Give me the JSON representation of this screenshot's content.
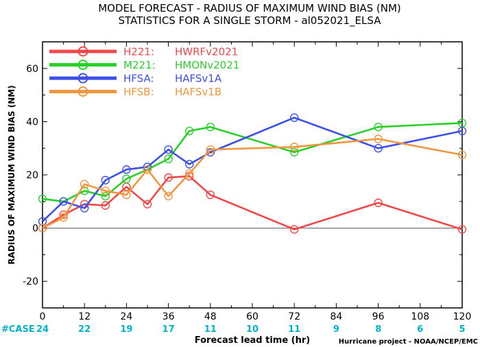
{
  "chart_data": {
    "type": "line",
    "title": "MODEL FORECAST - RADIUS OF MAXIMUM WIND BIAS (NM)",
    "subtitle": "STATISTICS FOR A SINGLE STORM - al052021_ELSA",
    "xlabel": "Forecast lead time (hr)",
    "ylabel": "RADIUS OF MAXIMUM WIND BIAS (NM)",
    "xlim": [
      0,
      120
    ],
    "ylim": [
      -30,
      70
    ],
    "x_ticks": [
      0,
      12,
      24,
      36,
      48,
      60,
      72,
      84,
      96,
      108,
      120
    ],
    "y_ticks": [
      -20,
      0,
      20,
      40,
      60
    ],
    "zero_line": true,
    "grid": false,
    "legend_position": "top-left",
    "case_label": "#CASE",
    "case_color": "#00b4c8",
    "cases": [
      {
        "x": 0,
        "n": "24"
      },
      {
        "x": 12,
        "n": "22"
      },
      {
        "x": 24,
        "n": "19"
      },
      {
        "x": 36,
        "n": "17"
      },
      {
        "x": 48,
        "n": "11"
      },
      {
        "x": 60,
        "n": "10"
      },
      {
        "x": 72,
        "n": "11"
      },
      {
        "x": 84,
        "n": "9"
      },
      {
        "x": 96,
        "n": "8"
      },
      {
        "x": 108,
        "n": "6"
      },
      {
        "x": 120,
        "n": "5"
      }
    ],
    "credit": "Hurricane project - NOAA/NCEP/EMC",
    "series": [
      {
        "id": "H221",
        "name": "HWRFv2021",
        "color": "#f04848",
        "x": [
          0,
          6,
          12,
          18,
          24,
          30,
          36,
          42,
          48,
          72,
          96,
          120
        ],
        "y": [
          0,
          5,
          9,
          8.5,
          15.5,
          9,
          19,
          19.5,
          12.5,
          -0.5,
          9.5,
          -0.5
        ]
      },
      {
        "id": "M221",
        "name": "HMONv2021",
        "color": "#28d028",
        "x": [
          0,
          6,
          12,
          18,
          24,
          30,
          36,
          42,
          48,
          72,
          96,
          120
        ],
        "y": [
          11,
          10,
          14,
          12,
          18.5,
          22,
          26,
          36.5,
          38,
          28.5,
          38,
          39.5
        ]
      },
      {
        "id": "HFSA",
        "name": "HAFSv1A",
        "color": "#3c50e6",
        "x": [
          0,
          6,
          12,
          18,
          24,
          30,
          36,
          42,
          48,
          72,
          96,
          120
        ],
        "y": [
          2.5,
          10,
          7.5,
          18,
          22,
          23,
          29.5,
          24,
          28.5,
          41.5,
          30,
          36.5
        ]
      },
      {
        "id": "HFSB",
        "name": "HAFSv1B",
        "color": "#f0963c",
        "x": [
          0,
          6,
          12,
          18,
          24,
          30,
          36,
          42,
          48,
          72,
          96,
          120
        ],
        "y": [
          0,
          4,
          16.5,
          14,
          12.5,
          22,
          12,
          20.5,
          29.5,
          30.5,
          33.5,
          27.5
        ]
      }
    ]
  }
}
